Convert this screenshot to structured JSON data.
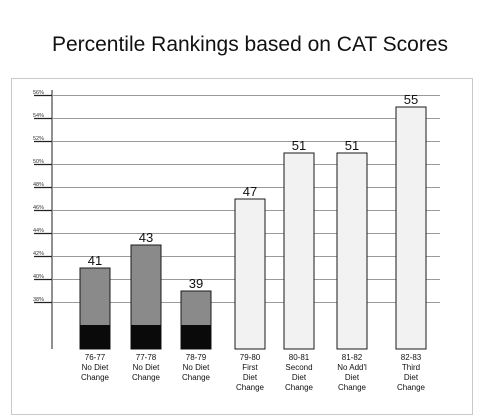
{
  "title": "Percentile Rankings based on CAT Scores",
  "chart_data": {
    "type": "bar",
    "title": "Percentile Rankings based on CAT Scores",
    "xlabel": "",
    "ylabel": "",
    "ylim": [
      35,
      58
    ],
    "yticks": [
      38,
      40,
      42,
      44,
      46,
      48,
      50,
      52,
      54,
      56
    ],
    "ytick_labels": [
      "38%",
      "40%",
      "42%",
      "44%",
      "46%",
      "48%",
      "50%",
      "52%",
      "54%",
      "56%"
    ],
    "grid": true,
    "categories": [
      [
        "76-77",
        "No Diet",
        "Change"
      ],
      [
        "77-78",
        "No Diet",
        "Change"
      ],
      [
        "78-79",
        "No Diet",
        "Change"
      ],
      [
        "79-80",
        "First",
        "Diet",
        "Change"
      ],
      [
        "80-81",
        "Second",
        "Diet",
        "Change"
      ],
      [
        "81-82",
        "No Add'l",
        "Diet",
        "Change"
      ],
      [
        "82-83",
        "Third",
        "Diet",
        "Change"
      ]
    ],
    "values": [
      41,
      43,
      39,
      47,
      51,
      51,
      55
    ],
    "data_labels": [
      "41",
      "43",
      "39",
      "47",
      "51",
      "51",
      "55"
    ],
    "colors": {
      "no_diet_change": "#8a8a8a",
      "diet_change": "#f2f2f2",
      "bar_base": "#0a0a0a",
      "bar_outline": "#1a1a1a"
    },
    "bar_groups": [
      "no_diet_change",
      "no_diet_change",
      "no_diet_change",
      "diet_change",
      "diet_change",
      "diet_change",
      "diet_change"
    ]
  }
}
